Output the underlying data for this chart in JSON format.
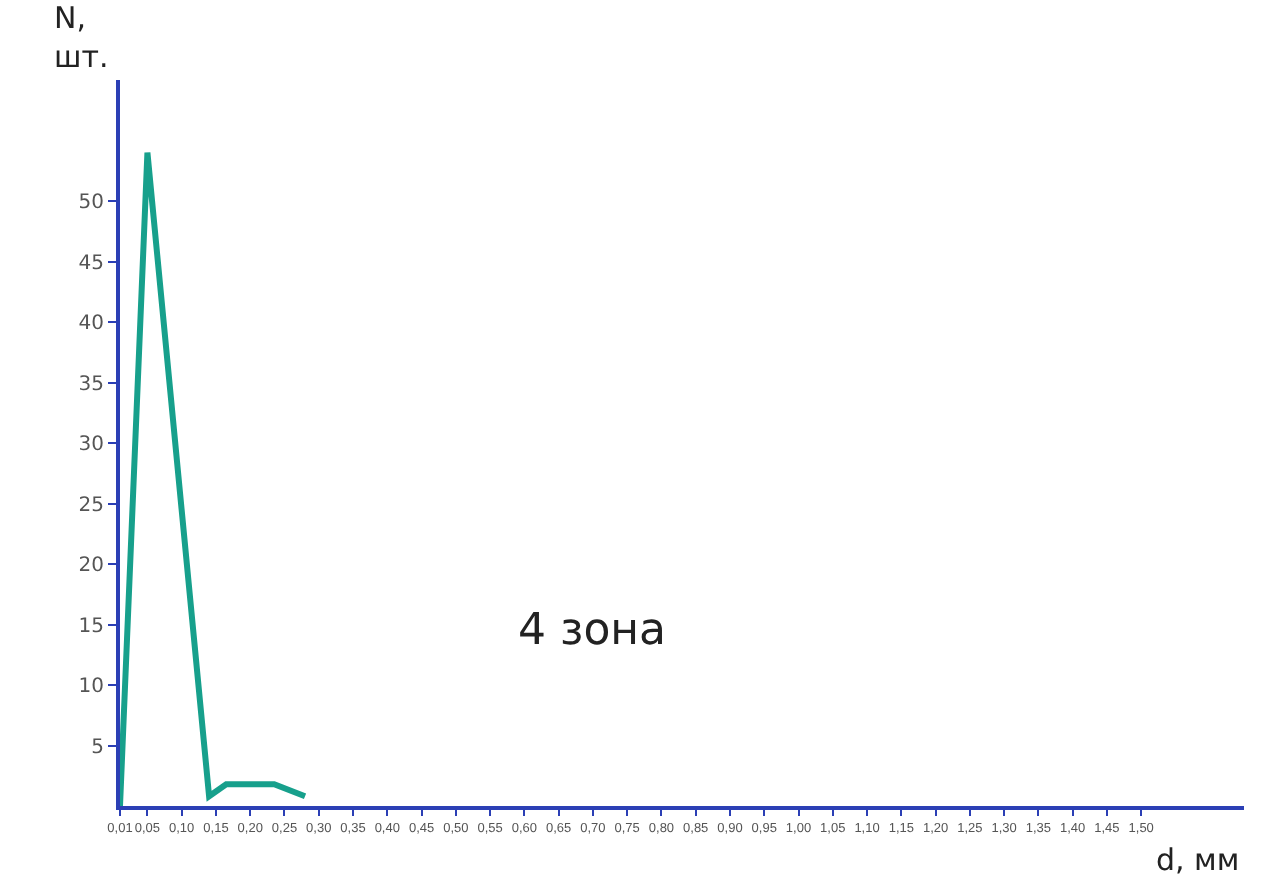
{
  "chart_data": {
    "type": "line",
    "xlabel": "d, мм",
    "ylabel": "N, шт.",
    "annotations": [
      "4 зона"
    ],
    "x": [
      0.01,
      0.05,
      0.14,
      0.165,
      0.185,
      0.235,
      0.28
    ],
    "series": [
      {
        "color": "#17a08c",
        "values": [
          0,
          54,
          0.8,
          1.8,
          1.8,
          1.8,
          0.8
        ]
      }
    ],
    "xlim": [
      0.01,
      1.65
    ],
    "ylim": [
      0,
      60
    ],
    "xticks": [
      {
        "value": 0.01,
        "label": "0,01"
      },
      {
        "value": 0.05,
        "label": "0,05"
      },
      {
        "value": 0.1,
        "label": "0,10"
      },
      {
        "value": 0.15,
        "label": "0,15"
      },
      {
        "value": 0.2,
        "label": "0,20"
      },
      {
        "value": 0.25,
        "label": "0,25"
      },
      {
        "value": 0.3,
        "label": "0,30"
      },
      {
        "value": 0.35,
        "label": "0,35"
      },
      {
        "value": 0.4,
        "label": "0,40"
      },
      {
        "value": 0.45,
        "label": "0,45"
      },
      {
        "value": 0.5,
        "label": "0,50"
      },
      {
        "value": 0.55,
        "label": "0,55"
      },
      {
        "value": 0.6,
        "label": "0,60"
      },
      {
        "value": 0.65,
        "label": "0,65"
      },
      {
        "value": 0.7,
        "label": "0,70"
      },
      {
        "value": 0.75,
        "label": "0,75"
      },
      {
        "value": 0.8,
        "label": "0,80"
      },
      {
        "value": 0.85,
        "label": "0,85"
      },
      {
        "value": 0.9,
        "label": "0,90"
      },
      {
        "value": 0.95,
        "label": "0,95"
      },
      {
        "value": 1.0,
        "label": "1,00"
      },
      {
        "value": 1.05,
        "label": "1,05"
      },
      {
        "value": 1.1,
        "label": "1,10"
      },
      {
        "value": 1.15,
        "label": "1,15"
      },
      {
        "value": 1.2,
        "label": "1,20"
      },
      {
        "value": 1.25,
        "label": "1,25"
      },
      {
        "value": 1.3,
        "label": "1,30"
      },
      {
        "value": 1.35,
        "label": "1,35"
      },
      {
        "value": 1.4,
        "label": "1,40"
      },
      {
        "value": 1.45,
        "label": "1,45"
      },
      {
        "value": 1.5,
        "label": "1,50"
      }
    ],
    "yticks": [
      5,
      10,
      15,
      20,
      25,
      30,
      35,
      40,
      45,
      50
    ],
    "marker": "none",
    "line_style": "solid"
  }
}
